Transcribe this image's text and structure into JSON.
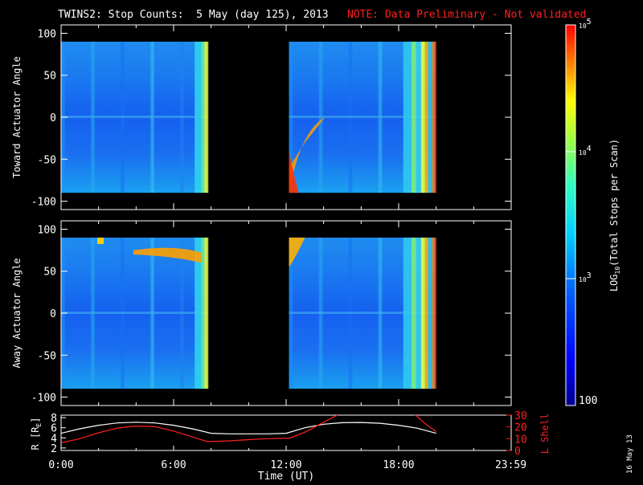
{
  "title": "TWINS2: Stop Counts:  5 May (day 125), 2013",
  "note": "NOTE: Data Preliminary - Not validated",
  "date_stamp": "16 May 13",
  "colors": {
    "background": "#000000",
    "axes": "#ffffff",
    "note": "#ff2020",
    "r_line": "#ffffff",
    "lshell_line": "#ff2020"
  },
  "chart_data": [
    {
      "type": "heatmap",
      "panel": "top",
      "ylabel": "Toward Actuator Angle",
      "ylim": [
        -110,
        110
      ],
      "y_ticks": [
        -100,
        -50,
        0,
        50,
        100
      ],
      "xlim_hours": [
        0,
        24
      ],
      "data_intervals_hours": [
        [
          0,
          7.85
        ],
        [
          12.15,
          20.0
        ]
      ],
      "angle_range": [
        -90,
        90
      ]
    },
    {
      "type": "heatmap",
      "panel": "bottom",
      "ylabel": "Away Actuator Angle",
      "ylim": [
        -110,
        110
      ],
      "y_ticks": [
        -100,
        -50,
        0,
        50,
        100
      ],
      "xlim_hours": [
        0,
        24
      ],
      "data_intervals_hours": [
        [
          0,
          7.85
        ],
        [
          12.15,
          20.0
        ]
      ],
      "angle_range": [
        -90,
        90
      ]
    },
    {
      "type": "line",
      "panel": "orbit",
      "ylabel_left": "R [R",
      "ylabel_left_sub": "E",
      "ylabel_left_end": "]",
      "ylabel_right": "L Shell",
      "ylim_left": [
        1.5,
        8.5
      ],
      "ylim_right": [
        0,
        30
      ],
      "left_ticks": [
        2,
        4,
        6,
        8
      ],
      "right_ticks": [
        0,
        10,
        20,
        30
      ],
      "x_tick_labels": [
        "0:00",
        "6:00",
        "12:00",
        "18:00",
        "23:59"
      ],
      "x_tick_hours": [
        0,
        6,
        12,
        18,
        23.98
      ],
      "xlabel": "Time (UT)",
      "series": [
        {
          "id": "r",
          "x": [
            0,
            1,
            2,
            3,
            4,
            5,
            6,
            7,
            8,
            9,
            10,
            11,
            12,
            13,
            14,
            15,
            16,
            17,
            18,
            19,
            20
          ],
          "y": [
            4.9,
            5.8,
            6.5,
            6.95,
            7.1,
            6.95,
            6.5,
            5.8,
            4.9,
            4.8,
            4.8,
            4.8,
            4.9,
            6.0,
            6.7,
            7.0,
            7.05,
            6.9,
            6.5,
            5.9,
            4.9
          ]
        },
        {
          "id": "lshell",
          "x": [
            0,
            1,
            2,
            3,
            4,
            5,
            6,
            7,
            7.8,
            9,
            10,
            11,
            12.2,
            13,
            14,
            14.9,
            18.8,
            19.4,
            20
          ],
          "y": [
            6.5,
            10,
            15,
            19,
            20.8,
            20.2,
            16.5,
            11.5,
            7.5,
            8.2,
            9.2,
            10,
            10.5,
            15.5,
            24,
            31.5,
            31.5,
            23,
            16
          ]
        }
      ]
    },
    {
      "type": "colorbar",
      "label_pre": "LOG",
      "label_sub": "10",
      "label_post": "(Total Stops per Scan)",
      "tick_labels": [
        {
          "text": "10",
          "exp": "5",
          "value_log": 5
        },
        {
          "text": "10",
          "exp": "4",
          "value_log": 4
        },
        {
          "text": "10",
          "exp": "3",
          "value_log": 3
        },
        {
          "text": "100",
          "exp": "",
          "value_log": 2
        }
      ],
      "range_log": [
        2,
        5
      ]
    }
  ]
}
